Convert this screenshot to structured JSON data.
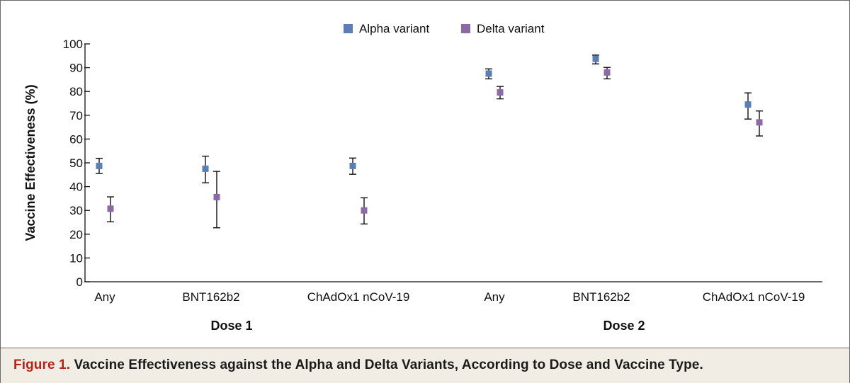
{
  "chart_data": {
    "type": "scatter",
    "ylabel": "Vaccine Effectiveness (%)",
    "ylim": [
      0,
      100
    ],
    "yticks": [
      0,
      10,
      20,
      30,
      40,
      50,
      60,
      70,
      80,
      90,
      100
    ],
    "categories": [
      "Any",
      "BNT162b2",
      "ChAdOx1 nCoV-19",
      "Any",
      "BNT162b2",
      "ChAdOx1 nCoV-19"
    ],
    "groups": [
      {
        "label": "Dose 1",
        "categories": [
          0,
          1,
          2
        ]
      },
      {
        "label": "Dose 2",
        "categories": [
          3,
          4,
          5
        ]
      }
    ],
    "legend_position": "top-center",
    "series": [
      {
        "name": "Alpha variant",
        "color": "#5b7fb5",
        "values": [
          48.7,
          47.5,
          48.7,
          87.5,
          93.7,
          74.5
        ],
        "lower": [
          45.5,
          41.6,
          45.2,
          85.3,
          91.6,
          68.4
        ],
        "upper": [
          51.9,
          52.8,
          52.0,
          89.5,
          95.3,
          79.4
        ]
      },
      {
        "name": "Delta variant",
        "color": "#8c6aa6",
        "values": [
          30.7,
          35.6,
          30.0,
          79.6,
          88.0,
          67.0
        ],
        "lower": [
          25.2,
          22.7,
          24.3,
          76.9,
          85.3,
          61.3
        ],
        "upper": [
          35.7,
          46.4,
          35.3,
          82.1,
          90.1,
          71.8
        ]
      }
    ]
  },
  "caption": {
    "label": "Figure 1.",
    "text": " Vaccine Effectiveness against the Alpha and Delta Variants, According to Dose and Vaccine Type."
  }
}
